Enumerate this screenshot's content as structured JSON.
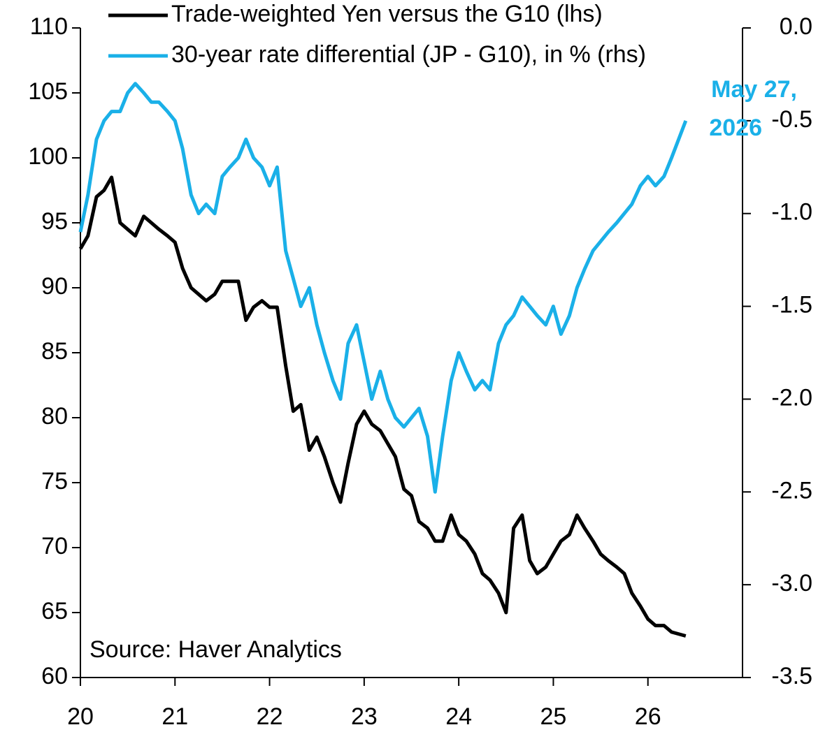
{
  "chart_data": {
    "type": "line",
    "legend": "top",
    "source": "Source: Haver Analytics",
    "annotation": [
      "May 27,",
      "2026"
    ],
    "x": [
      20,
      20.08,
      20.17,
      20.25,
      20.33,
      20.42,
      20.5,
      20.58,
      20.67,
      20.75,
      20.83,
      20.92,
      21,
      21.08,
      21.17,
      21.25,
      21.33,
      21.42,
      21.5,
      21.58,
      21.67,
      21.75,
      21.83,
      21.92,
      22,
      22.08,
      22.17,
      22.25,
      22.33,
      22.42,
      22.5,
      22.58,
      22.67,
      22.75,
      22.83,
      22.92,
      23,
      23.08,
      23.17,
      23.25,
      23.33,
      23.42,
      23.5,
      23.58,
      23.67,
      23.75,
      23.83,
      23.92,
      24,
      24.08,
      24.17,
      24.25,
      24.33,
      24.42,
      24.5,
      24.58,
      24.67,
      24.75,
      24.83,
      24.92,
      25,
      25.08,
      25.17,
      25.25,
      25.33,
      25.42,
      25.5,
      25.58,
      25.67,
      25.75,
      25.83,
      25.92,
      26,
      26.08,
      26.17,
      26.25,
      26.4
    ],
    "series": [
      {
        "name": "Trade-weighted Yen versus the G10 (lhs)",
        "color": "#000000",
        "axis": "y",
        "values": [
          93,
          94,
          97,
          97.5,
          98.5,
          95,
          94.5,
          94,
          95.5,
          95,
          94.5,
          94,
          93.5,
          91.5,
          90,
          89.5,
          89,
          89.5,
          90.5,
          90.5,
          90.5,
          87.5,
          88.5,
          89,
          88.5,
          88.5,
          84,
          80.5,
          81,
          77.5,
          78.5,
          77,
          75,
          73.5,
          76.5,
          79.5,
          80.5,
          79.5,
          79,
          78,
          77,
          74.5,
          74,
          72,
          71.5,
          70.5,
          70.5,
          72.5,
          71,
          70.5,
          69.5,
          68,
          67.5,
          66.5,
          65,
          71.5,
          72.5,
          69,
          68,
          68.5,
          69.5,
          70.5,
          71,
          72.5,
          71.5,
          70.5,
          69.5,
          69,
          68.5,
          68,
          66.5,
          65.5,
          64.5,
          64,
          64,
          63.5,
          63.2
        ]
      },
      {
        "name": "30-year rate differential (JP - G10), in % (rhs)",
        "color": "#1ab0e8",
        "axis": "y2",
        "values": [
          -1.1,
          -0.9,
          -0.6,
          -0.5,
          -0.45,
          -0.45,
          -0.35,
          -0.3,
          -0.35,
          -0.4,
          -0.4,
          -0.45,
          -0.5,
          -0.65,
          -0.9,
          -1.0,
          -0.95,
          -1.0,
          -0.8,
          -0.75,
          -0.7,
          -0.6,
          -0.7,
          -0.75,
          -0.85,
          -0.75,
          -1.2,
          -1.35,
          -1.5,
          -1.4,
          -1.6,
          -1.75,
          -1.9,
          -2.0,
          -1.7,
          -1.6,
          -1.8,
          -2.0,
          -1.85,
          -2.0,
          -2.1,
          -2.15,
          -2.1,
          -2.05,
          -2.2,
          -2.5,
          -2.2,
          -1.9,
          -1.75,
          -1.85,
          -1.95,
          -1.9,
          -1.95,
          -1.7,
          -1.6,
          -1.55,
          -1.45,
          -1.5,
          -1.55,
          -1.6,
          -1.5,
          -1.65,
          -1.55,
          -1.4,
          -1.3,
          -1.2,
          -1.15,
          -1.1,
          -1.05,
          -1.0,
          -0.95,
          -0.85,
          -0.8,
          -0.85,
          -0.8,
          -0.7,
          -0.5
        ]
      }
    ],
    "xlim": [
      20,
      27
    ],
    "xticks": [
      20,
      21,
      22,
      23,
      24,
      25,
      26
    ],
    "ylim": [
      60,
      110
    ],
    "yticks": [
      60,
      65,
      70,
      75,
      80,
      85,
      90,
      95,
      100,
      105,
      110
    ],
    "y2lim": [
      -3.5,
      0
    ],
    "y2ticks": [
      {
        "value": -3.5,
        "label": "-3.5"
      },
      {
        "value": -3,
        "label": "-3.0"
      },
      -2.5,
      {
        "value": -2,
        "label": "-2.0"
      },
      -1.5,
      {
        "value": -1,
        "label": "-1.0"
      },
      -0.5,
      {
        "value": 0,
        "label": "0.0"
      }
    ],
    "grid": false
  }
}
